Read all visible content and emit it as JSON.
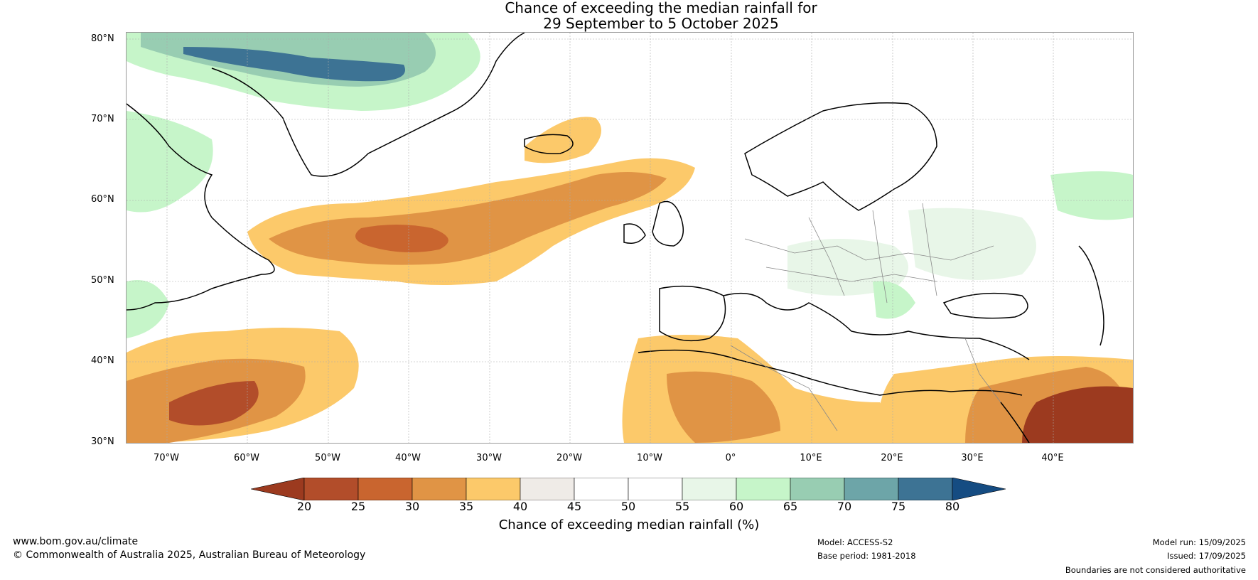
{
  "title_line1": "Chance of exceeding the median rainfall for",
  "title_line2": "29 September to 5 October 2025",
  "lat_labels": [
    "80°N",
    "70°N",
    "60°N",
    "50°N",
    "40°N",
    "30°N"
  ],
  "lon_labels": [
    "70°W",
    "60°W",
    "50°W",
    "40°W",
    "30°W",
    "20°W",
    "10°W",
    "0°",
    "10°E",
    "20°E",
    "30°E",
    "40°E"
  ],
  "colorbar": {
    "label": "Chance of exceeding median rainfall (%)",
    "ticks": [
      "20",
      "25",
      "30",
      "35",
      "40",
      "45",
      "50",
      "55",
      "60",
      "65",
      "70",
      "75",
      "80"
    ],
    "colors": [
      "#9c3a1f",
      "#b24d2a",
      "#c9652f",
      "#e09445",
      "#fcc96a",
      "#efebe7",
      "#ffffff",
      "#ffffff",
      "#e8f6e8",
      "#c6f5c9",
      "#98cdb2",
      "#6da5a8",
      "#3d7394",
      "#154c82"
    ]
  },
  "footer": {
    "website": "www.bom.gov.au/climate",
    "copyright": "© Commonwealth of Australia 2025, Australian Bureau of Meteorology",
    "model": "Model: ACCESS-S2",
    "base_period": "Base period: 1981-2018",
    "model_run": "Model run: 15/09/2025",
    "issued": "Issued: 17/09/2025",
    "disclaimer": "Boundaries are not considered authoritative"
  }
}
